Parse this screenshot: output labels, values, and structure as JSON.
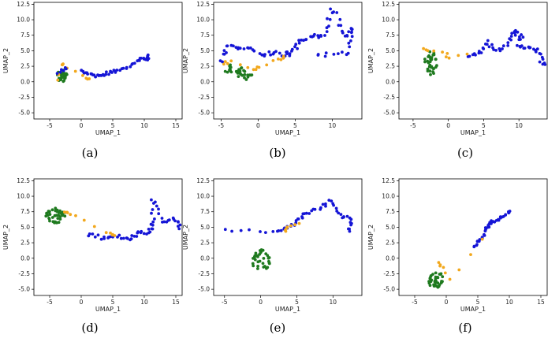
{
  "figure": {
    "captions": [
      "(a)",
      "(b)",
      "(c)",
      "(d)",
      "(e)",
      "(f)"
    ]
  },
  "colors": {
    "blue": "#1515d6",
    "green": "#1f7a1f",
    "orange": "#f2a81d",
    "frame": "#000000"
  },
  "chart_data": [
    {
      "type": "scatter",
      "caption": "(a)",
      "xlabel": "UMAP_1",
      "ylabel": "UMAP_2",
      "xlim": [
        -7.5,
        16
      ],
      "ylim": [
        -6,
        12.8
      ],
      "xticks": [
        "-5",
        "0",
        "5",
        "10",
        "15"
      ],
      "xtick_values": [
        -5,
        0,
        5,
        10,
        15
      ],
      "yticks": [
        "-5.0",
        "-2.5",
        "0.0",
        "2.5",
        "5.0",
        "7.5",
        "10.0",
        "12.5"
      ],
      "ytick_values": [
        -5,
        -2.5,
        0,
        2.5,
        5,
        7.5,
        10,
        12.5
      ],
      "clusters": [
        {
          "color": "blue",
          "path": [
            [
              0.0,
              1.6
            ],
            [
              1.2,
              1.3
            ],
            [
              2.6,
              1.0
            ],
            [
              3.6,
              0.9
            ],
            [
              4.6,
              1.6
            ],
            [
              5.8,
              1.8
            ],
            [
              7.5,
              2.4
            ],
            [
              9.0,
              3.3
            ],
            [
              10.0,
              3.9
            ],
            [
              10.6,
              3.5
            ],
            [
              10.3,
              4.2
            ]
          ],
          "n": 55,
          "spread": 0.32
        },
        {
          "color": "green",
          "center": [
            -3.0,
            1.0
          ],
          "rx": 0.8,
          "ry": 1.1,
          "n": 28
        },
        {
          "color": "orange",
          "path": [
            [
              -3.6,
              0.4
            ],
            [
              -3.2,
              2.8
            ],
            [
              -2.7,
              2.6
            ],
            [
              0.5,
              0.6
            ],
            [
              1.4,
              0.5
            ]
          ],
          "n": 12,
          "spread": 0.25
        },
        {
          "color": "blue",
          "path": [
            [
              -2.4,
              2.2
            ],
            [
              -3.6,
              1.5
            ]
          ],
          "n": 6,
          "spread": 0.3
        }
      ]
    },
    {
      "type": "scatter",
      "caption": "(b)",
      "xlabel": "UMAP_1",
      "ylabel": "UMAP_2",
      "xlim": [
        -6,
        14
      ],
      "ylim": [
        -6,
        12.8
      ],
      "xticks": [
        "-5",
        "0",
        "5",
        "10"
      ],
      "xtick_values": [
        -5,
        0,
        5,
        10
      ],
      "yticks": [
        "-5.0",
        "-2.5",
        "0.0",
        "2.5",
        "5.0",
        "7.5",
        "10.0",
        "12.5"
      ],
      "ytick_values": [
        -5,
        -2.5,
        0,
        2.5,
        5,
        7.5,
        10,
        12.5
      ],
      "clusters": [
        {
          "color": "blue",
          "path": [
            [
              -5.0,
              3.5
            ],
            [
              -4.0,
              5.8
            ],
            [
              -2.0,
              5.5
            ],
            [
              0.5,
              4.3
            ],
            [
              2.5,
              4.6
            ],
            [
              4.5,
              4.3
            ],
            [
              5.5,
              6.5
            ],
            [
              7.5,
              7.5
            ],
            [
              9.0,
              7.2
            ],
            [
              10.2,
              11.8
            ],
            [
              11.5,
              7.3
            ],
            [
              13.0,
              8.5
            ],
            [
              12.0,
              4.5
            ],
            [
              8.0,
              4.3
            ]
          ],
          "n": 95,
          "spread": 0.5
        },
        {
          "color": "green",
          "center": [
            -2.0,
            1.3
          ],
          "rx": 1.2,
          "ry": 1.1,
          "n": 26
        },
        {
          "color": "green",
          "center": [
            -4.0,
            2.0
          ],
          "rx": 0.5,
          "ry": 0.9,
          "n": 10
        },
        {
          "color": "orange",
          "path": [
            [
              -4.6,
              2.8
            ],
            [
              -3.6,
              3.4
            ],
            [
              -0.6,
              2.0
            ],
            [
              0.2,
              2.4
            ],
            [
              2.8,
              3.6
            ],
            [
              3.4,
              4.0
            ]
          ],
          "n": 16,
          "spread": 0.25
        }
      ]
    },
    {
      "type": "scatter",
      "caption": "(c)",
      "xlabel": "UMAP_1",
      "ylabel": "UMAP_2",
      "xlim": [
        -7,
        14
      ],
      "ylim": [
        -6,
        12.8
      ],
      "xticks": [
        "-5",
        "0",
        "5",
        "10"
      ],
      "xtick_values": [
        -5,
        0,
        5,
        10
      ],
      "yticks": [
        "-5.0",
        "-2.5",
        "0.0",
        "2.5",
        "5.0",
        "7.5",
        "10.0",
        "12.5"
      ],
      "ytick_values": [
        -5,
        -2.5,
        0,
        2.5,
        5,
        7.5,
        10,
        12.5
      ],
      "clusters": [
        {
          "color": "blue",
          "path": [
            [
              3.0,
              4.3
            ],
            [
              4.5,
              4.8
            ],
            [
              5.5,
              6.2
            ],
            [
              7.0,
              5.0
            ],
            [
              8.5,
              6.5
            ],
            [
              9.5,
              8.1
            ],
            [
              10.2,
              7.3
            ],
            [
              10.0,
              5.6
            ],
            [
              12.0,
              5.5
            ],
            [
              13.2,
              4.5
            ],
            [
              13.4,
              2.4
            ]
          ],
          "n": 60,
          "spread": 0.45
        },
        {
          "color": "green",
          "center": [
            -2.5,
            3.0
          ],
          "rx": 0.9,
          "ry": 1.9,
          "n": 32
        },
        {
          "color": "orange",
          "path": [
            [
              -3.3,
              5.3
            ],
            [
              -2.7,
              5.0
            ],
            [
              -0.4,
              4.6
            ],
            [
              -0.2,
              3.8
            ],
            [
              2.6,
              4.5
            ]
          ],
          "n": 10,
          "spread": 0.25
        }
      ]
    },
    {
      "type": "scatter",
      "caption": "(d)",
      "xlabel": "UMAP_1",
      "ylabel": "UMAP_2",
      "xlim": [
        -7.5,
        16
      ],
      "ylim": [
        -6,
        12.8
      ],
      "xticks": [
        "-5",
        "0",
        "5",
        "10",
        "15"
      ],
      "xtick_values": [
        -5,
        0,
        5,
        10,
        15
      ],
      "yticks": [
        "-5.0",
        "-2.5",
        "0.0",
        "2.5",
        "5.0",
        "7.5",
        "10.0",
        "12.5"
      ],
      "ytick_values": [
        -5,
        -2.5,
        0,
        2.5,
        5,
        7.5,
        10,
        12.5
      ],
      "clusters": [
        {
          "color": "blue",
          "path": [
            [
              1.0,
              3.9
            ],
            [
              3.5,
              3.3
            ],
            [
              5.5,
              3.5
            ],
            [
              7.5,
              3.1
            ],
            [
              9.0,
              4.0
            ],
            [
              10.8,
              4.2
            ],
            [
              11.5,
              5.4
            ],
            [
              11.4,
              9.4
            ],
            [
              13.0,
              6.0
            ],
            [
              14.8,
              6.3
            ],
            [
              15.8,
              4.8
            ]
          ],
          "n": 60,
          "spread": 0.35
        },
        {
          "color": "green",
          "center": [
            -4.0,
            6.9
          ],
          "rx": 1.6,
          "ry": 1.2,
          "n": 40
        },
        {
          "color": "orange",
          "path": [
            [
              -2.6,
              7.6
            ],
            [
              -1.6,
              7.0
            ],
            [
              4.4,
              4.0
            ],
            [
              5.3,
              3.6
            ]
          ],
          "n": 12,
          "spread": 0.25
        }
      ]
    },
    {
      "type": "scatter",
      "caption": "(e)",
      "xlabel": "UMAP_1",
      "ylabel": "UMAP_2",
      "xlim": [
        -6.5,
        14
      ],
      "ylim": [
        -6,
        12.8
      ],
      "xticks": [
        "-5",
        "0",
        "5",
        "10"
      ],
      "xtick_values": [
        -5,
        0,
        5,
        10
      ],
      "yticks": [
        "-5.0",
        "-2.5",
        "0.0",
        "2.5",
        "5.0",
        "7.5",
        "10.0",
        "12.5"
      ],
      "ytick_values": [
        -5,
        -2.5,
        0,
        2.5,
        5,
        7.5,
        10,
        12.5
      ],
      "clusters": [
        {
          "color": "blue",
          "path": [
            [
              -5.0,
              4.6
            ],
            [
              2.0,
              4.3
            ],
            [
              3.5,
              4.8
            ],
            [
              5.0,
              6.0
            ],
            [
              6.0,
              7.1
            ],
            [
              8.0,
              8.0
            ],
            [
              9.5,
              9.2
            ],
            [
              11.0,
              7.0
            ],
            [
              12.5,
              6.2
            ],
            [
              12.3,
              4.2
            ]
          ],
          "n": 55,
          "spread": 0.35
        },
        {
          "color": "green",
          "center": [
            0.0,
            -0.3
          ],
          "rx": 1.3,
          "ry": 1.8,
          "n": 36
        },
        {
          "color": "orange",
          "path": [
            [
              3.3,
              4.3
            ],
            [
              3.6,
              5.0
            ],
            [
              5.4,
              5.6
            ]
          ],
          "n": 7,
          "spread": 0.2
        }
      ]
    },
    {
      "type": "scatter",
      "caption": "(f)",
      "xlabel": "UMAP_1",
      "ylabel": "UMAP_2",
      "xlim": [
        -7.5,
        16
      ],
      "ylim": [
        -6,
        12.8
      ],
      "xticks": [
        "-5",
        "0",
        "5",
        "10",
        "15"
      ],
      "xtick_values": [
        -5,
        0,
        5,
        10,
        15
      ],
      "yticks": [
        "-5.0",
        "-2.5",
        "0.0",
        "2.5",
        "5.0",
        "7.5",
        "10.0",
        "12.5"
      ],
      "ytick_values": [
        -5,
        -2.5,
        0,
        2.5,
        5,
        7.5,
        10,
        12.5
      ],
      "clusters": [
        {
          "color": "blue",
          "path": [
            [
              4.5,
              1.8
            ],
            [
              5.5,
              3.0
            ],
            [
              6.3,
              4.8
            ],
            [
              7.2,
              5.8
            ],
            [
              8.8,
              6.7
            ],
            [
              10.2,
              7.4
            ]
          ],
          "n": 40,
          "spread": 0.3
        },
        {
          "color": "green",
          "center": [
            -1.5,
            -3.6
          ],
          "rx": 1.3,
          "ry": 1.4,
          "n": 36
        },
        {
          "color": "orange",
          "path": [
            [
              -1.3,
              -0.7
            ],
            [
              -0.7,
              -1.3
            ],
            [
              0.7,
              -3.6
            ],
            [
              5.8,
              3.0
            ]
          ],
          "n": 9,
          "spread": 0.2
        }
      ]
    }
  ]
}
